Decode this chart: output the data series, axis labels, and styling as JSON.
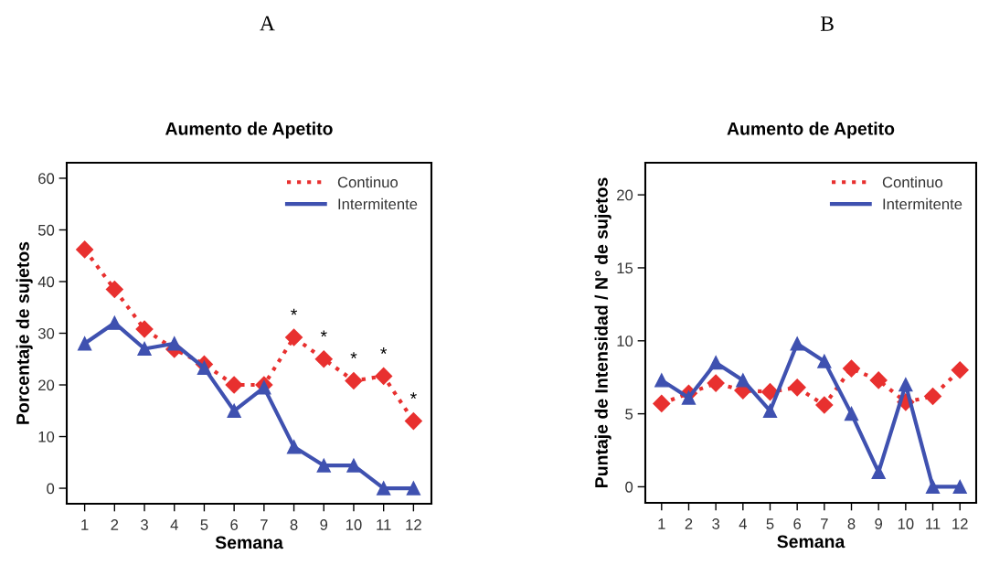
{
  "chart_data": [
    {
      "type": "line",
      "title": "Aumento de Apetito",
      "xlabel": "Semana",
      "ylabel": "Porcentaje de sujetos",
      "categories": [
        "1",
        "2",
        "3",
        "4",
        "5",
        "6",
        "7",
        "8",
        "9",
        "10",
        "11",
        "12"
      ],
      "series": [
        {
          "name": "Continuo",
          "color": "#e8302f",
          "marker": "diamond",
          "line_style": "dotted",
          "values": [
            46.2,
            38.5,
            30.8,
            26.9,
            24,
            20,
            20,
            29.2,
            25,
            20.8,
            21.7,
            13
          ]
        },
        {
          "name": "Intermitente",
          "color": "#3f51b0",
          "marker": "triangle",
          "line_style": "solid",
          "values": [
            28,
            32,
            27,
            28,
            23.3,
            15,
            19.5,
            8,
            4.4,
            4.4,
            0,
            0
          ]
        }
      ],
      "ylim": [
        -3,
        63
      ],
      "yticks": [
        0,
        10,
        20,
        30,
        40,
        50,
        60
      ],
      "grid": false,
      "legend": "top right",
      "annotations": [
        "A",
        {
          "text": "*",
          "x": "8",
          "y": 29.2
        },
        {
          "text": "*",
          "x": "9",
          "y": 25
        },
        {
          "text": "*",
          "x": "10",
          "y": 20.8
        },
        {
          "text": "*",
          "x": "11",
          "y": 21.7
        },
        {
          "text": "*",
          "x": "12",
          "y": 13
        }
      ]
    },
    {
      "type": "line",
      "title": "Aumento de Apetito",
      "xlabel": "Semana",
      "ylabel": "Puntaje de Intensidad / N° de sujetos",
      "categories": [
        "1",
        "2",
        "3",
        "4",
        "5",
        "6",
        "7",
        "8",
        "9",
        "10",
        "11",
        "12"
      ],
      "series": [
        {
          "name": "Continuo",
          "color": "#e8302f",
          "marker": "diamond",
          "line_style": "dotted",
          "values": [
            5.7,
            6.4,
            7.1,
            6.6,
            6.5,
            6.8,
            5.6,
            8.1,
            7.3,
            5.8,
            6.2,
            8.0
          ]
        },
        {
          "name": "Intermitente",
          "color": "#3f51b0",
          "marker": "triangle",
          "line_style": "solid",
          "values": [
            7.3,
            6.1,
            8.5,
            7.3,
            5.2,
            9.8,
            8.6,
            5.0,
            1.0,
            7.0,
            0,
            0
          ]
        }
      ],
      "ylim": [
        -1.1,
        22.2
      ],
      "yticks": [
        0,
        5,
        10,
        15,
        20
      ],
      "grid": false,
      "legend": "top right",
      "annotations": [
        "B"
      ]
    }
  ]
}
